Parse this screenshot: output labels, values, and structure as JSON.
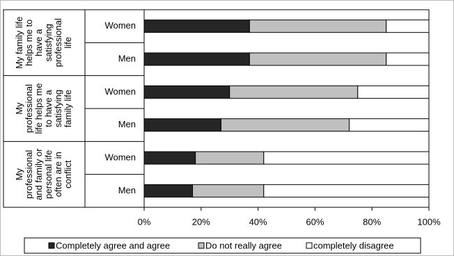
{
  "chart_data": {
    "type": "stacked-bar-horizontal",
    "group_labels": [
      [
        "My family life",
        "helps me to",
        "have a",
        "satisfying",
        "professional",
        "life"
      ],
      [
        "My",
        "professional",
        "life helps me",
        "to have a",
        "satisfying",
        "family life"
      ],
      [
        "My",
        "professional",
        "and family or",
        "personal life",
        "often are in",
        "conflict"
      ]
    ],
    "categories": [
      "Women",
      "Men",
      "Women",
      "Men",
      "Women",
      "Men"
    ],
    "series": [
      {
        "name": "Completely agree and agree",
        "color": "#262626",
        "values": [
          37,
          37,
          30,
          27,
          18,
          17
        ]
      },
      {
        "name": "Do not really agree",
        "color": "#c0c0c0",
        "values": [
          48,
          48,
          45,
          45,
          24,
          25
        ]
      },
      {
        "name": "completely disagree",
        "color": "#ffffff",
        "values": [
          15,
          15,
          25,
          28,
          58,
          58
        ]
      }
    ],
    "xlim": [
      0,
      100
    ],
    "xticks": [
      {
        "value": 0,
        "label": "0%"
      },
      {
        "value": 20,
        "label": "20%"
      },
      {
        "value": 40,
        "label": "40%"
      },
      {
        "value": 60,
        "label": "60%"
      },
      {
        "value": 80,
        "label": "80%"
      },
      {
        "value": 100,
        "label": "100%"
      }
    ]
  }
}
